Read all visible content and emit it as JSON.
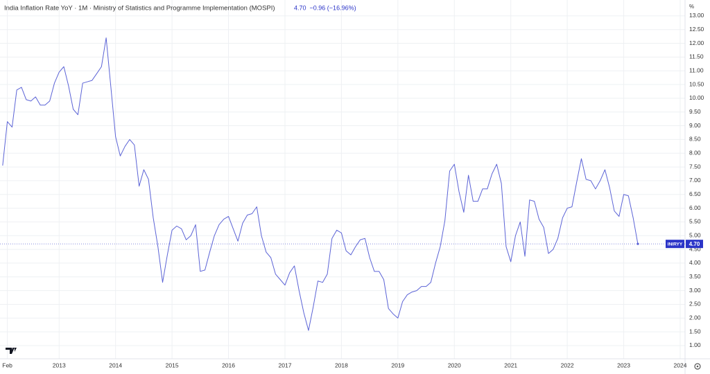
{
  "chart_data": {
    "type": "line",
    "title": "India Inflation Rate YoY · 1M · Ministry of Statistics and Programme Implementation (MOSPI)",
    "legend_value": "4.70",
    "legend_change": "−0.96 (−16.96%)",
    "y_unit": "%",
    "symbol": "INIRYY",
    "x": [
      2012,
      2012.083,
      2012.167,
      2012.25,
      2012.333,
      2012.417,
      2012.5,
      2012.583,
      2012.667,
      2012.75,
      2012.833,
      2012.917,
      2013,
      2013.083,
      2013.167,
      2013.25,
      2013.333,
      2013.417,
      2013.5,
      2013.583,
      2013.667,
      2013.75,
      2013.833,
      2013.917,
      2014,
      2014.083,
      2014.167,
      2014.25,
      2014.333,
      2014.417,
      2014.5,
      2014.583,
      2014.667,
      2014.75,
      2014.833,
      2014.917,
      2015,
      2015.083,
      2015.167,
      2015.25,
      2015.333,
      2015.417,
      2015.5,
      2015.583,
      2015.667,
      2015.75,
      2015.833,
      2015.917,
      2016,
      2016.083,
      2016.167,
      2016.25,
      2016.333,
      2016.417,
      2016.5,
      2016.583,
      2016.667,
      2016.75,
      2016.833,
      2016.917,
      2017,
      2017.083,
      2017.167,
      2017.25,
      2017.333,
      2017.417,
      2017.5,
      2017.583,
      2017.667,
      2017.75,
      2017.833,
      2017.917,
      2018,
      2018.083,
      2018.167,
      2018.25,
      2018.333,
      2018.417,
      2018.5,
      2018.583,
      2018.667,
      2018.75,
      2018.833,
      2018.917,
      2019,
      2019.083,
      2019.167,
      2019.25,
      2019.333,
      2019.417,
      2019.5,
      2019.583,
      2019.667,
      2019.75,
      2019.833,
      2019.917,
      2020,
      2020.083,
      2020.167,
      2020.25,
      2020.333,
      2020.417,
      2020.5,
      2020.583,
      2020.667,
      2020.75,
      2020.833,
      2020.917,
      2021,
      2021.083,
      2021.167,
      2021.25,
      2021.333,
      2021.417,
      2021.5,
      2021.583,
      2021.667,
      2021.75,
      2021.833,
      2021.917,
      2022,
      2022.083,
      2022.167,
      2022.25,
      2022.333,
      2022.417,
      2022.5,
      2022.583,
      2022.667,
      2022.75,
      2022.833,
      2022.917,
      2023,
      2023.083,
      2023.167,
      2023.25
    ],
    "series": [
      {
        "name": "INIRYY",
        "color": "#5b63d6",
        "values": [
          7.55,
          9.15,
          8.95,
          10.3,
          10.4,
          9.95,
          9.9,
          10.05,
          9.75,
          9.75,
          9.9,
          10.55,
          10.95,
          11.15,
          10.45,
          9.6,
          9.4,
          10.55,
          10.6,
          10.65,
          10.9,
          11.15,
          12.2,
          10.4,
          8.6,
          7.9,
          8.25,
          8.5,
          8.3,
          6.8,
          7.4,
          7.05,
          5.65,
          4.6,
          3.3,
          4.3,
          5.2,
          5.35,
          5.25,
          4.85,
          5.0,
          5.4,
          3.7,
          3.75,
          4.4,
          5.0,
          5.4,
          5.6,
          5.7,
          5.25,
          4.8,
          5.45,
          5.75,
          5.8,
          6.05,
          5.0,
          4.4,
          4.2,
          3.6,
          3.4,
          3.2,
          3.65,
          3.9,
          3.0,
          2.2,
          1.55,
          2.4,
          3.35,
          3.3,
          3.6,
          4.9,
          5.2,
          5.1,
          4.45,
          4.3,
          4.6,
          4.85,
          4.9,
          4.2,
          3.7,
          3.7,
          3.4,
          2.35,
          2.15,
          2.0,
          2.6,
          2.85,
          2.95,
          3.0,
          3.15,
          3.15,
          3.3,
          4.0,
          4.6,
          5.55,
          7.35,
          7.6,
          6.6,
          5.85,
          7.2,
          6.25,
          6.25,
          6.7,
          6.7,
          7.25,
          7.6,
          6.9,
          4.6,
          4.05,
          5.0,
          5.5,
          4.25,
          6.3,
          6.25,
          5.6,
          5.3,
          4.35,
          4.5,
          4.9,
          5.65,
          6.0,
          6.05,
          6.95,
          7.8,
          7.05,
          7.0,
          6.7,
          7.0,
          7.4,
          6.75,
          5.9,
          5.7,
          6.5,
          6.45,
          5.65,
          4.7
        ]
      }
    ],
    "xlim": [
      2011.953,
      2024.086
    ],
    "xticks": [
      {
        "value": 2012.083,
        "label": "Feb"
      },
      2013,
      2014,
      2015,
      2016,
      2017,
      2018,
      2019,
      2020,
      2021,
      2022,
      2023,
      2024
    ],
    "ylim": [
      0.52,
      13.45
    ],
    "yticks": [
      {
        "value": 1,
        "label": "1.00"
      },
      {
        "value": 1.5,
        "label": "1.50"
      },
      {
        "value": 2,
        "label": "2.00"
      },
      {
        "value": 2.5,
        "label": "2.50"
      },
      {
        "value": 3,
        "label": "3.00"
      },
      {
        "value": 3.5,
        "label": "3.50"
      },
      {
        "value": 4,
        "label": "4.00"
      },
      {
        "value": 4.5,
        "label": "4.50"
      },
      {
        "value": 5,
        "label": "5.00"
      },
      {
        "value": 5.5,
        "label": "5.50"
      },
      {
        "value": 6,
        "label": "6.00"
      },
      {
        "value": 6.5,
        "label": "6.50"
      },
      {
        "value": 7,
        "label": "7.00"
      },
      {
        "value": 7.5,
        "label": "7.50"
      },
      {
        "value": 8,
        "label": "8.00"
      },
      {
        "value": 8.5,
        "label": "8.50"
      },
      {
        "value": 9,
        "label": "9.00"
      },
      {
        "value": 9.5,
        "label": "9.50"
      },
      {
        "value": 10,
        "label": "10.00"
      },
      {
        "value": 10.5,
        "label": "10.50"
      },
      {
        "value": 11,
        "label": "11.00"
      },
      {
        "value": 11.5,
        "label": "11.50"
      },
      {
        "value": 12,
        "label": "12.00"
      },
      {
        "value": 12.5,
        "label": "12.50"
      },
      {
        "value": 13,
        "label": "13.00"
      }
    ],
    "grid": true
  }
}
